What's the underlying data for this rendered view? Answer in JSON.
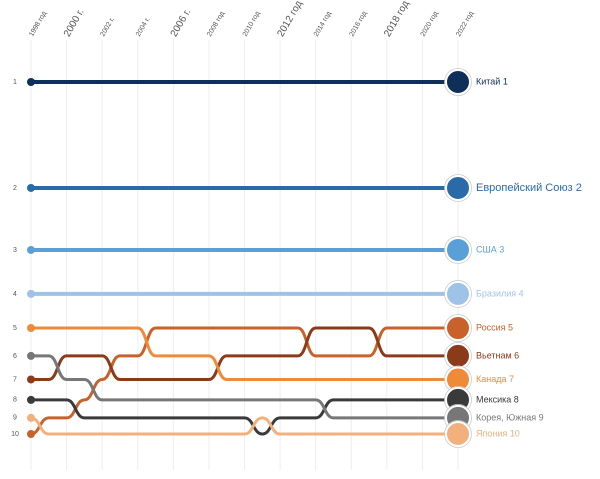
{
  "chart_data": {
    "type": "bump",
    "x": [
      1998,
      1999,
      2000,
      2001,
      2002,
      2003,
      2004,
      2005,
      2006,
      2007,
      2008,
      2009,
      2010,
      2011,
      2012,
      2013,
      2014,
      2015,
      2016,
      2017,
      2018,
      2019,
      2020,
      2021,
      2022
    ],
    "xlim": [
      1998,
      2022
    ],
    "xticks": [
      {
        "value": 1998,
        "label": "1998 год"
      },
      {
        "value": 2000,
        "label": "2000 г."
      },
      {
        "value": 2002,
        "label": "2002 г."
      },
      {
        "value": 2004,
        "label": "2004 г."
      },
      {
        "value": 2006,
        "label": "2006 г."
      },
      {
        "value": 2008,
        "label": "2008 год"
      },
      {
        "value": 2010,
        "label": "2010 год"
      },
      {
        "value": 2012,
        "label": "2012 год"
      },
      {
        "value": 2014,
        "label": "2014 год"
      },
      {
        "value": 2016,
        "label": "2016 год"
      },
      {
        "value": 2018,
        "label": "2018 год"
      },
      {
        "value": 2020,
        "label": "2020 год"
      },
      {
        "value": 2022,
        "label": "2022 год"
      }
    ],
    "ylim": [
      1,
      10
    ],
    "yticks": [
      1,
      2,
      3,
      4,
      5,
      6,
      7,
      8,
      9,
      10
    ],
    "y_log_scale": true,
    "grid": true,
    "series": [
      {
        "name": "Китай 1",
        "color": "#0d2f5a",
        "values": [
          1,
          1,
          1,
          1,
          1,
          1,
          1,
          1,
          1,
          1,
          1,
          1,
          1,
          1,
          1,
          1,
          1,
          1,
          1,
          1,
          1,
          1,
          1,
          1,
          1
        ]
      },
      {
        "name": "Европейский Союз 2",
        "color": "#2a6aa8",
        "values": [
          2,
          2,
          2,
          2,
          2,
          2,
          2,
          2,
          2,
          2,
          2,
          2,
          2,
          2,
          2,
          2,
          2,
          2,
          2,
          2,
          2,
          2,
          2,
          2,
          2
        ]
      },
      {
        "name": "США 3",
        "color": "#5aa0d8",
        "values": [
          3,
          3,
          3,
          3,
          3,
          3,
          3,
          3,
          3,
          3,
          3,
          3,
          3,
          3,
          3,
          3,
          3,
          3,
          3,
          3,
          3,
          3,
          3,
          3,
          3
        ]
      },
      {
        "name": "Бразилия 4",
        "color": "#9fc3e6",
        "values": [
          4,
          4,
          4,
          4,
          4,
          4,
          4,
          4,
          4,
          4,
          4,
          4,
          4,
          4,
          4,
          4,
          4,
          4,
          4,
          4,
          4,
          4,
          4,
          4,
          4
        ]
      },
      {
        "name": "Россия 5",
        "color": "#c8622a",
        "values": [
          10,
          9,
          9,
          8,
          7,
          6,
          6,
          5,
          5,
          5,
          5,
          5,
          5,
          5,
          5,
          5,
          6,
          6,
          6,
          6,
          5,
          5,
          5,
          5,
          5
        ]
      },
      {
        "name": "Вьетнам 6",
        "color": "#8b3a1a",
        "values": [
          7,
          7,
          6,
          6,
          6,
          7,
          7,
          7,
          7,
          7,
          7,
          6,
          6,
          6,
          6,
          6,
          5,
          5,
          5,
          5,
          6,
          6,
          6,
          6,
          6
        ]
      },
      {
        "name": "Канада 7",
        "color": "#ef8a3a",
        "values": [
          5,
          5,
          5,
          5,
          5,
          5,
          5,
          6,
          6,
          6,
          6,
          7,
          7,
          7,
          7,
          7,
          7,
          7,
          7,
          7,
          7,
          7,
          7,
          7,
          7
        ]
      },
      {
        "name": "Мексика 8",
        "color": "#3a3a3a",
        "values": [
          8,
          8,
          8,
          9,
          9,
          9,
          9,
          9,
          9,
          9,
          9,
          9,
          9,
          10,
          9,
          9,
          9,
          8,
          8,
          8,
          8,
          8,
          8,
          8,
          8
        ]
      },
      {
        "name": "Корея, Южная 9",
        "color": "#777777",
        "values": [
          6,
          6,
          7,
          7,
          8,
          8,
          8,
          8,
          8,
          8,
          8,
          8,
          8,
          8,
          8,
          8,
          8,
          9,
          9,
          9,
          9,
          9,
          9,
          9,
          9
        ]
      },
      {
        "name": "Япония 10",
        "color": "#f2b07c",
        "values": [
          9,
          10,
          10,
          10,
          10,
          10,
          10,
          10,
          10,
          10,
          10,
          10,
          10,
          9,
          10,
          10,
          10,
          10,
          10,
          10,
          10,
          10,
          10,
          10,
          10
        ]
      }
    ]
  }
}
